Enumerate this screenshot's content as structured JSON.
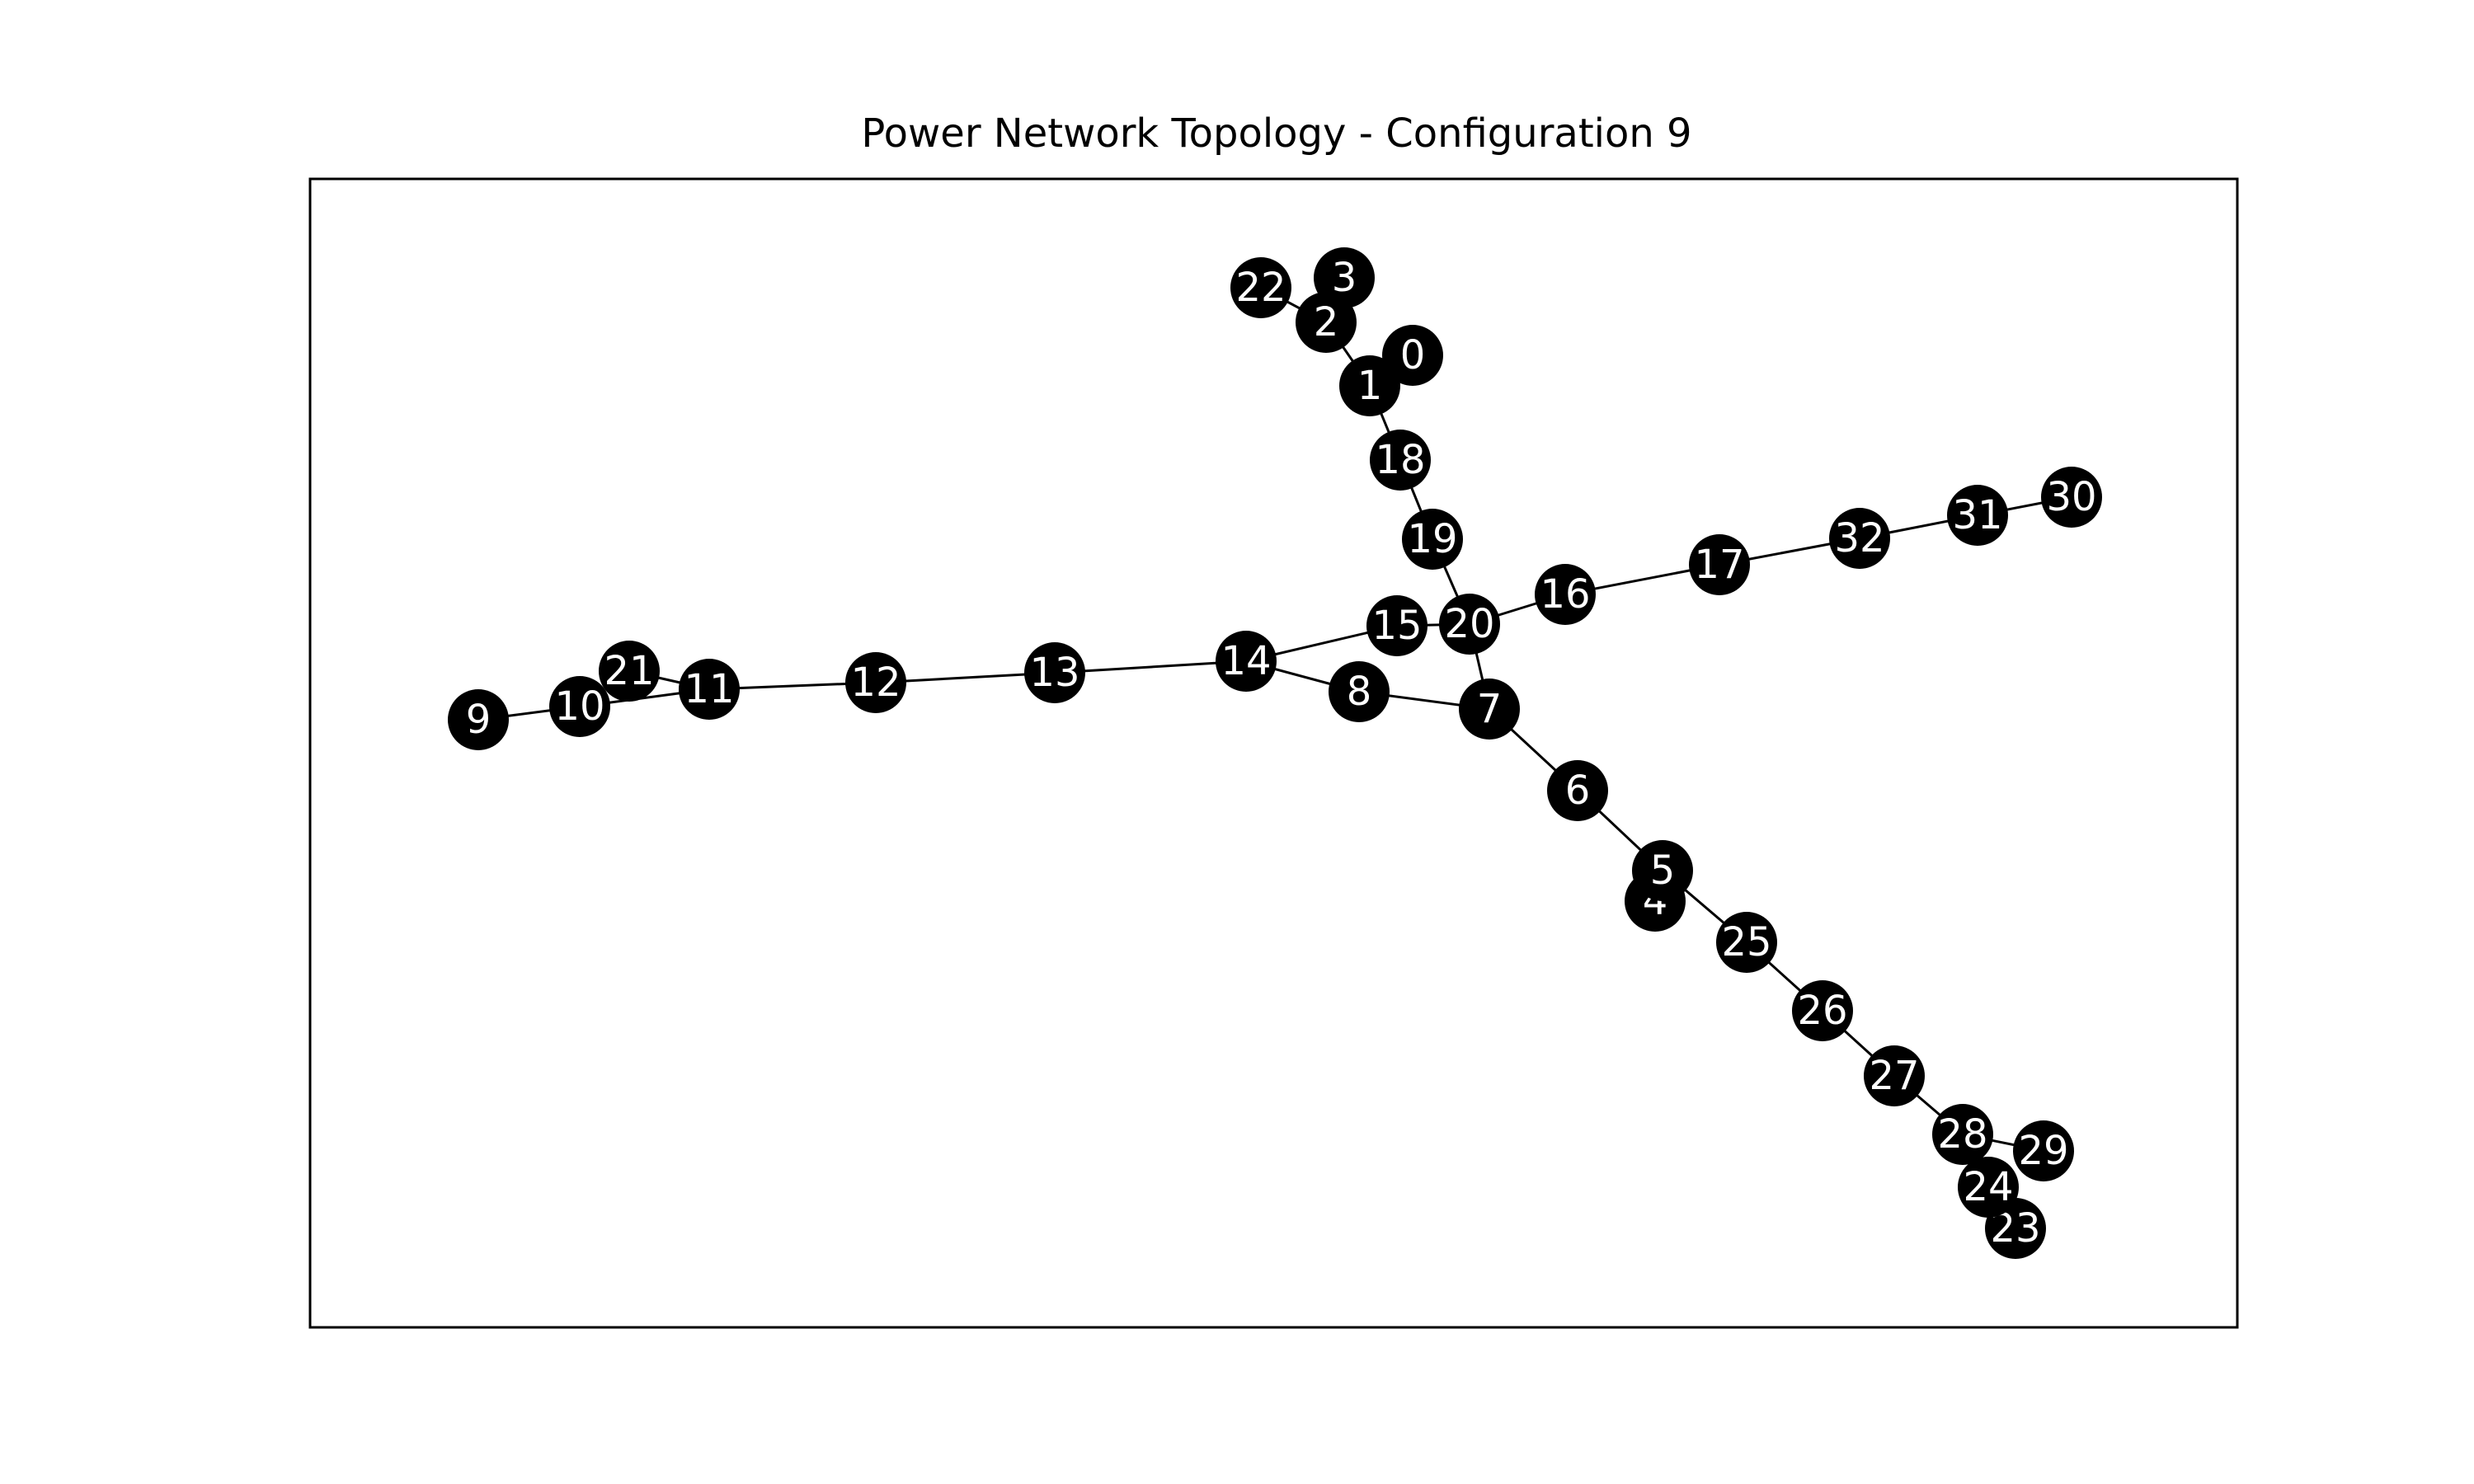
{
  "chart_title": "Power Network Topology - Configuration 9",
  "colors": {
    "node_fill": "#000000",
    "node_label": "#ffffff",
    "edge": "#000000",
    "frame": "#000000",
    "background": "#ffffff"
  },
  "nodes": [
    "0",
    "1",
    "2",
    "3",
    "4",
    "5",
    "6",
    "7",
    "8",
    "9",
    "10",
    "11",
    "12",
    "13",
    "14",
    "15",
    "16",
    "17",
    "18",
    "19",
    "20",
    "21",
    "22",
    "23",
    "24",
    "25",
    "26",
    "27",
    "28",
    "29",
    "30",
    "31",
    "32"
  ],
  "edges": [
    [
      "0",
      "1"
    ],
    [
      "1",
      "2"
    ],
    [
      "2",
      "3"
    ],
    [
      "2",
      "22"
    ],
    [
      "1",
      "18"
    ],
    [
      "18",
      "19"
    ],
    [
      "19",
      "20"
    ],
    [
      "20",
      "15"
    ],
    [
      "20",
      "16"
    ],
    [
      "16",
      "17"
    ],
    [
      "17",
      "32"
    ],
    [
      "32",
      "31"
    ],
    [
      "31",
      "30"
    ],
    [
      "20",
      "7"
    ],
    [
      "15",
      "14"
    ],
    [
      "14",
      "8"
    ],
    [
      "8",
      "7"
    ],
    [
      "14",
      "13"
    ],
    [
      "13",
      "12"
    ],
    [
      "12",
      "11"
    ],
    [
      "11",
      "21"
    ],
    [
      "11",
      "10"
    ],
    [
      "10",
      "9"
    ],
    [
      "7",
      "6"
    ],
    [
      "6",
      "5"
    ],
    [
      "5",
      "4"
    ],
    [
      "5",
      "25"
    ],
    [
      "25",
      "26"
    ],
    [
      "26",
      "27"
    ],
    [
      "27",
      "28"
    ],
    [
      "28",
      "29"
    ],
    [
      "28",
      "24"
    ],
    [
      "24",
      "23"
    ]
  ]
}
